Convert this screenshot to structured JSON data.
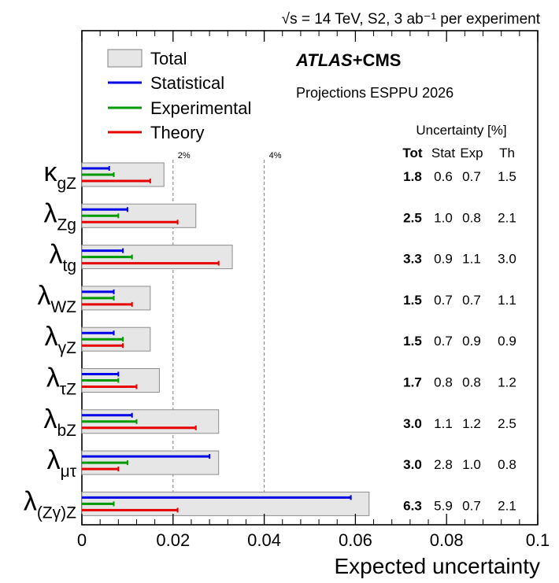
{
  "chart_data": {
    "type": "bar",
    "orientation": "horizontal",
    "header": "√s = 14 TeV, S2, 3 ab⁻¹ per experiment",
    "experiment_bold": "ATLAS",
    "experiment_rest": "+CMS",
    "projection": "Projections ESPPU 2026",
    "uncertainty_title": "Uncertainty [%]",
    "columns": [
      "Tot",
      "Stat",
      "Exp",
      "Th"
    ],
    "xlabel": "Expected uncertainty",
    "xlim": [
      0,
      0.1
    ],
    "xticks": [
      "0",
      "0.02",
      "0.04",
      "0.06",
      "0.08",
      "0.1"
    ],
    "xtick_values": [
      0,
      0.02,
      0.04,
      0.06,
      0.08,
      0.1
    ],
    "reference_lines": [
      {
        "value": 0.02,
        "label": "2%"
      },
      {
        "value": 0.04,
        "label": "4%"
      }
    ],
    "legend": [
      {
        "name": "Total",
        "kind": "box",
        "color": "#e6e6e6",
        "edge": "#808080"
      },
      {
        "name": "Statistical",
        "kind": "line",
        "color": "#0000e6"
      },
      {
        "name": "Experimental",
        "kind": "line",
        "color": "#009900"
      },
      {
        "name": "Theory",
        "kind": "line",
        "color": "#e60000"
      }
    ],
    "categories": [
      {
        "base": "κ",
        "sub": "gZ"
      },
      {
        "base": "λ",
        "sub": "Zg"
      },
      {
        "base": "λ",
        "sub": "tg"
      },
      {
        "base": "λ",
        "sub": "WZ"
      },
      {
        "base": "λ",
        "sub": "γZ"
      },
      {
        "base": "λ",
        "sub": "τZ"
      },
      {
        "base": "λ",
        "sub": "bZ"
      },
      {
        "base": "λ",
        "sub": "μτ"
      },
      {
        "base": "λ",
        "sub": "(Zγ)Z"
      }
    ],
    "series": [
      {
        "name": "Total",
        "values": [
          0.018,
          0.025,
          0.033,
          0.015,
          0.015,
          0.017,
          0.03,
          0.03,
          0.063
        ]
      },
      {
        "name": "Statistical",
        "values": [
          0.006,
          0.01,
          0.009,
          0.007,
          0.007,
          0.008,
          0.011,
          0.028,
          0.059
        ]
      },
      {
        "name": "Experimental",
        "values": [
          0.007,
          0.008,
          0.011,
          0.007,
          0.009,
          0.008,
          0.012,
          0.01,
          0.007
        ]
      },
      {
        "name": "Theory",
        "values": [
          0.015,
          0.021,
          0.03,
          0.011,
          0.009,
          0.012,
          0.025,
          0.008,
          0.021
        ]
      }
    ],
    "table": [
      [
        "1.8",
        "0.6",
        "0.7",
        "1.5"
      ],
      [
        "2.5",
        "1.0",
        "0.8",
        "2.1"
      ],
      [
        "3.3",
        "0.9",
        "1.1",
        "3.0"
      ],
      [
        "1.5",
        "0.7",
        "0.7",
        "1.1"
      ],
      [
        "1.5",
        "0.7",
        "0.9",
        "0.9"
      ],
      [
        "1.7",
        "0.8",
        "0.8",
        "1.2"
      ],
      [
        "3.0",
        "1.1",
        "1.2",
        "2.5"
      ],
      [
        "3.0",
        "2.8",
        "1.0",
        "0.8"
      ],
      [
        "6.3",
        "5.9",
        "0.7",
        "2.1"
      ]
    ],
    "grid": false
  }
}
